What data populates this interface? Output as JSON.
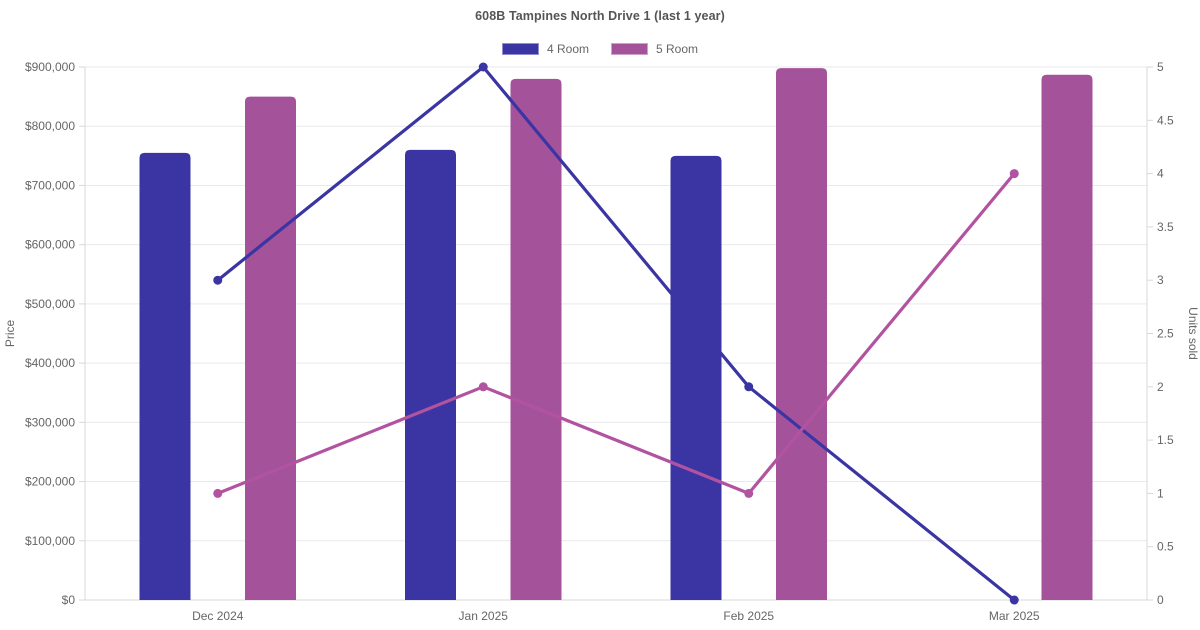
{
  "header": {
    "title": "608B Tampines North Drive 1 (last 1 year)"
  },
  "legend": {
    "items": [
      {
        "label": "4 Room",
        "color": "#3b35a4",
        "border": "#918dd4"
      },
      {
        "label": "5 Room",
        "color": "#a4539a",
        "border": "#cfa0ca"
      }
    ]
  },
  "chart_data": {
    "type": "bar",
    "subtype": "grouped-bars-with-line-overlay",
    "title": "608B Tampines North Drive 1 (last 1 year)",
    "categories": [
      "Dec 2024",
      "Jan 2025",
      "Feb 2025",
      "Mar 2025"
    ],
    "series": [
      {
        "name": "4 Room",
        "type": "bar",
        "yaxis": "left",
        "color": "#3b35a4",
        "values": [
          755000,
          760000,
          750000,
          null
        ]
      },
      {
        "name": "5 Room",
        "type": "bar",
        "yaxis": "left",
        "color": "#a4539a",
        "values": [
          850000,
          880000,
          898000,
          887000
        ]
      },
      {
        "name": "4 Room",
        "type": "line",
        "yaxis": "right",
        "color": "#3b35a4",
        "values": [
          3,
          5,
          2,
          0
        ]
      },
      {
        "name": "5 Room",
        "type": "line",
        "yaxis": "right",
        "color": "#b153a1",
        "values": [
          1,
          2,
          1,
          4
        ]
      }
    ],
    "axes": {
      "left": {
        "label": "Price",
        "min": 0,
        "max": 900000,
        "step": 100000,
        "format": "usd"
      },
      "right": {
        "label": "Units sold",
        "min": 0,
        "max": 5,
        "step": 0.5,
        "format": "number"
      }
    },
    "grid": {
      "horizontal": true,
      "vertical": false
    },
    "legend_position": "top-center",
    "colors": {
      "grid_line": "#e9e9ec",
      "axis_line": "#d9d9d9",
      "tick_text": "#666666"
    }
  }
}
